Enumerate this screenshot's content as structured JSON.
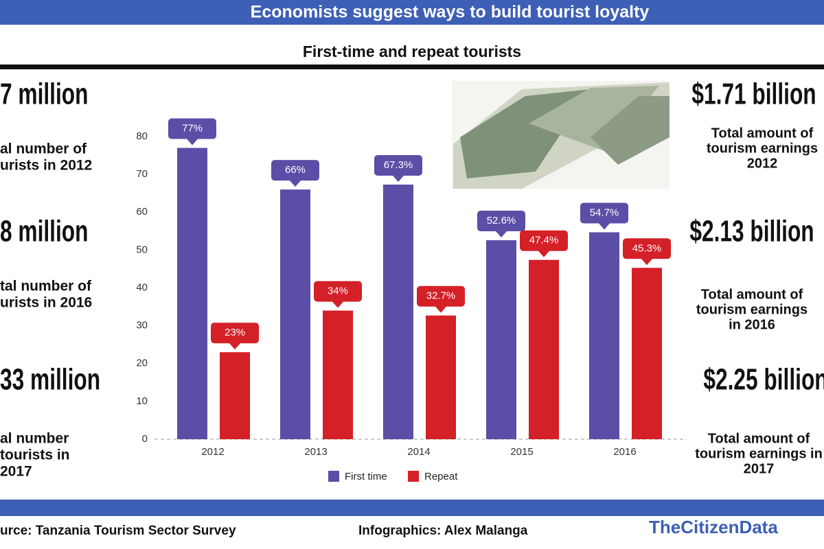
{
  "header": {
    "title": "Economists suggest ways to build tourist loyalty",
    "subtitle": "First-time and repeat tourists"
  },
  "left_stats": [
    {
      "figure": "7 million",
      "lines": [
        "al number of",
        "urists in 2012"
      ]
    },
    {
      "figure": "8 million",
      "lines": [
        "tal number of",
        "urists in 2016"
      ]
    },
    {
      "figure": "33 million",
      "lines": [
        "al number",
        "tourists in",
        "2017"
      ]
    }
  ],
  "right_stats": [
    {
      "figure": "$1.71 billion",
      "lines": [
        "Total amount of",
        "tourism earnings",
        "2012"
      ]
    },
    {
      "figure": "$2.13 billion",
      "lines": [
        "Total amount of",
        "tourism earnings",
        "in 2016"
      ]
    },
    {
      "figure": "$2.25 billion",
      "lines": [
        "Total amount of",
        "tourism earnings in",
        "2017"
      ]
    }
  ],
  "footer": {
    "source": "urce: Tanzania Tourism Sector Survey",
    "credit": "Infographics: Alex Malanga",
    "brand": "TheCitizenData"
  },
  "chart_data": {
    "type": "bar",
    "categories": [
      "2012",
      "2013",
      "2014",
      "2015",
      "2016"
    ],
    "series": [
      {
        "name": "First time",
        "color": "#5a4ea6",
        "values": [
          77,
          66,
          67.3,
          52.6,
          54.7
        ],
        "value_labels": [
          "77%",
          "66%",
          "67.3%",
          "52.6%",
          "54.7%"
        ]
      },
      {
        "name": "Repeat",
        "color": "#d42027",
        "values": [
          23,
          34,
          32.7,
          47.4,
          45.3
        ],
        "value_labels": [
          "23%",
          "34%",
          "32.7%",
          "47.4%",
          "45.3%"
        ]
      }
    ],
    "ylim": [
      0,
      85
    ],
    "yticks": [
      0,
      10,
      20,
      30,
      40,
      50,
      60,
      70,
      80
    ],
    "legend": "bottom"
  }
}
